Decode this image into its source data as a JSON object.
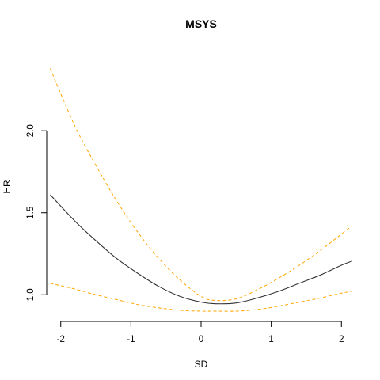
{
  "chart_data": {
    "type": "line",
    "title": "MSYS",
    "xlabel": "SD",
    "ylabel": "HR",
    "xlim": [
      -2.2,
      2.2
    ],
    "ylim": [
      0.9,
      2.45
    ],
    "x_ticks": [
      "-2",
      "-1",
      "0",
      "1",
      "2"
    ],
    "x_tick_values": [
      -2,
      -1,
      0,
      1,
      2
    ],
    "y_ticks": [
      "1.0",
      "1.5",
      "2.0"
    ],
    "y_tick_values": [
      1.0,
      1.5,
      2.0
    ],
    "grid": false,
    "legend": "none",
    "x": [
      -2.15,
      -1.8,
      -1.5,
      -1.2,
      -0.9,
      -0.6,
      -0.3,
      0,
      0.2,
      0.5,
      0.8,
      1.1,
      1.4,
      1.7,
      2.0,
      2.15
    ],
    "series": [
      {
        "style": "solid",
        "color": "#333333",
        "values": [
          1.61,
          1.45,
          1.33,
          1.22,
          1.13,
          1.05,
          0.99,
          0.955,
          0.945,
          0.95,
          0.98,
          1.02,
          1.07,
          1.12,
          1.18,
          1.205
        ]
      },
      {
        "style": "dashed",
        "color": "#FFA500",
        "values": [
          2.38,
          2.03,
          1.79,
          1.57,
          1.38,
          1.22,
          1.09,
          0.99,
          0.965,
          0.975,
          1.03,
          1.1,
          1.18,
          1.27,
          1.37,
          1.42
        ]
      },
      {
        "style": "dashed",
        "color": "#FFA500",
        "values": [
          1.07,
          1.035,
          1.0,
          0.97,
          0.94,
          0.92,
          0.905,
          0.9,
          0.9,
          0.9,
          0.91,
          0.93,
          0.955,
          0.98,
          1.01,
          1.02
        ]
      }
    ]
  }
}
